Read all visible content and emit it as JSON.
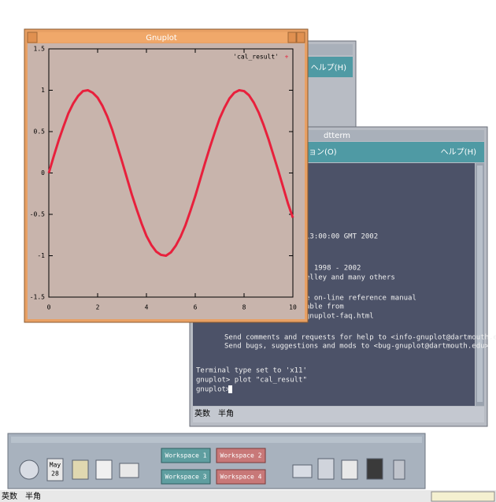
{
  "back_window": {
    "menu": "ヘルプ(H)"
  },
  "gnuplot_window": {
    "title": "Gnuplot"
  },
  "chart_data": {
    "type": "line",
    "x": [
      0,
      0.2,
      0.4,
      0.6,
      0.8,
      1,
      1.2,
      1.4,
      1.6,
      1.8,
      2,
      2.2,
      2.4,
      2.6,
      2.8,
      3,
      3.2,
      3.4,
      3.6,
      3.8,
      4,
      4.2,
      4.4,
      4.6,
      4.8,
      5,
      5.2,
      5.4,
      5.6,
      5.8,
      6,
      6.2,
      6.4,
      6.6,
      6.8,
      7,
      7.2,
      7.4,
      7.6,
      7.8,
      8,
      8.2,
      8.4,
      8.6,
      8.8,
      9,
      9.2,
      9.4,
      9.6,
      9.8,
      10
    ],
    "series": [
      {
        "name": "'cal_result'",
        "color": "#e8203c",
        "values": [
          0,
          0.2,
          0.39,
          0.56,
          0.72,
          0.84,
          0.93,
          0.99,
          1,
          0.97,
          0.91,
          0.81,
          0.68,
          0.52,
          0.33,
          0.14,
          -0.06,
          -0.26,
          -0.44,
          -0.61,
          -0.76,
          -0.87,
          -0.95,
          -0.99,
          -1,
          -0.96,
          -0.88,
          -0.77,
          -0.63,
          -0.46,
          -0.28,
          -0.08,
          0.12,
          0.31,
          0.49,
          0.66,
          0.79,
          0.9,
          0.97,
          1,
          0.99,
          0.94,
          0.85,
          0.73,
          0.58,
          0.41,
          0.22,
          0.03,
          -0.17,
          -0.37,
          -0.54
        ]
      }
    ],
    "xlim": [
      0,
      10
    ],
    "xticks": [
      0,
      2,
      4,
      6,
      8,
      10
    ],
    "ylim": [
      -1.5,
      1.5
    ],
    "yticks": [
      -1.5,
      -1,
      -0.5,
      0,
      0.5,
      1,
      1.5
    ],
    "legend": "top-right"
  },
  "dtterm": {
    "title": "dtterm",
    "menu": [
      "ョン(O)",
      "ヘルプ(H)"
    ],
    "lines": [
      "13:00:00 GMT 2002",
      ", 1998 - 2002",
      "elley and many others",
      "e on-line reference manual",
      "able from",
      "gnuplot-faq.html",
      "Send comments and requests for help to <info-gnuplot@dartmouth.edu>",
      "Send bugs, suggestions and mods to <bug-gnuplot@dartmouth.edu>",
      "Terminal type set to 'x11'",
      "gnuplot> plot \"cal_result\"",
      "gnuplot> "
    ],
    "status": "英数　半角"
  },
  "front_panel": {
    "calendar_month": "May",
    "calendar_day": "28",
    "workspaces": [
      "Workspace 1",
      "Workspace 2",
      "Workspace 3",
      "Workspace 4"
    ]
  },
  "status_bar": "英数　半角"
}
